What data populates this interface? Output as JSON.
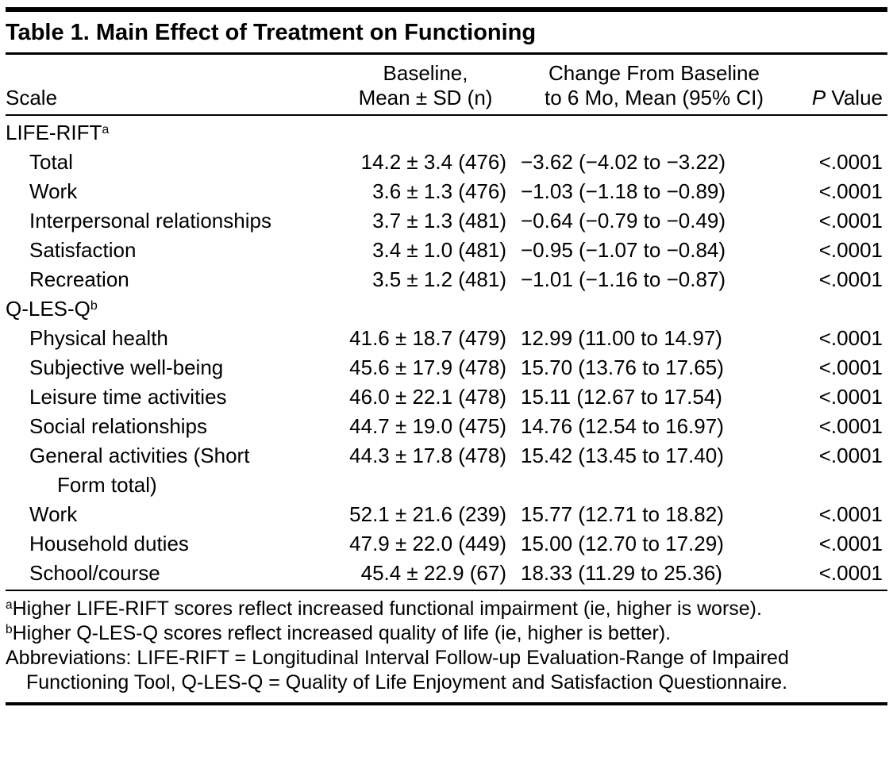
{
  "table": {
    "title": "Table 1. Main Effect of Treatment on Functioning",
    "columns": {
      "scale": "Scale",
      "baseline_line1": "Baseline,",
      "baseline_line2": "Mean ± SD (n)",
      "change_line1": "Change From Baseline",
      "change_line2": "to 6 Mo, Mean (95% CI)",
      "p_italic": "P",
      "p_rest": " Value"
    },
    "rows": [
      {
        "type": "section",
        "label": "LIFE-RIFT",
        "sup": "a"
      },
      {
        "type": "data",
        "label": "Total",
        "baseline": "14.2 ± 3.4 (476)",
        "change": "−3.62 (−4.02 to −3.22)",
        "p": "<.0001"
      },
      {
        "type": "data",
        "label": "Work",
        "baseline": "3.6 ± 1.3 (476)",
        "change": "−1.03 (−1.18 to −0.89)",
        "p": "<.0001"
      },
      {
        "type": "data",
        "label": "Interpersonal relationships",
        "baseline": "3.7 ± 1.3 (481)",
        "change": "−0.64 (−0.79 to −0.49)",
        "p": "<.0001"
      },
      {
        "type": "data",
        "label": "Satisfaction",
        "baseline": "3.4 ± 1.0 (481)",
        "change": "−0.95 (−1.07 to −0.84)",
        "p": "<.0001"
      },
      {
        "type": "data",
        "label": "Recreation",
        "baseline": "3.5 ± 1.2 (481)",
        "change": "−1.01 (−1.16 to −0.87)",
        "p": "<.0001"
      },
      {
        "type": "section",
        "label": "Q-LES-Q",
        "sup": "b"
      },
      {
        "type": "data",
        "label": "Physical health",
        "baseline": "41.6 ± 18.7 (479)",
        "change": "12.99 (11.00 to 14.97)",
        "p": "<.0001"
      },
      {
        "type": "data",
        "label": "Subjective well-being",
        "baseline": "45.6 ± 17.9 (478)",
        "change": "15.70 (13.76 to 17.65)",
        "p": "<.0001"
      },
      {
        "type": "data",
        "label": "Leisure time activities",
        "baseline": "46.0 ± 22.1 (478)",
        "change": "15.11 (12.67 to 17.54)",
        "p": "<.0001"
      },
      {
        "type": "data",
        "label": "Social relationships",
        "baseline": "44.7 ± 19.0 (475)",
        "change": "14.76 (12.54 to 16.97)",
        "p": "<.0001"
      },
      {
        "type": "data",
        "label": "General activities (Short",
        "label2": "Form total)",
        "baseline": "44.3 ± 17.8 (478)",
        "change": "15.42 (13.45 to 17.40)",
        "p": "<.0001"
      },
      {
        "type": "data",
        "label": "Work",
        "baseline": "52.1 ± 21.6 (239)",
        "change": "15.77 (12.71 to 18.82)",
        "p": "<.0001"
      },
      {
        "type": "data",
        "label": "Household duties",
        "baseline": "47.9 ± 22.0 (449)",
        "change": "15.00 (12.70 to 17.29)",
        "p": "<.0001"
      },
      {
        "type": "data",
        "label": "School/course",
        "baseline": "45.4 ± 22.9 (67)",
        "change": "18.33 (11.29 to 25.36)",
        "p": "<.0001"
      }
    ],
    "footnotes": [
      {
        "sup": "a",
        "text": "Higher LIFE-RIFT scores reflect increased functional impairment (ie, higher is worse)."
      },
      {
        "sup": "b",
        "text": "Higher Q-LES-Q scores reflect increased quality of life (ie, higher is better)."
      },
      {
        "sup": "",
        "text": "Abbreviations: LIFE-RIFT = Longitudinal Interval Follow-up Evaluation-Range of Impaired Functioning Tool, Q-LES-Q = Quality of Life Enjoyment and Satisfaction Questionnaire."
      }
    ]
  },
  "colors": {
    "background": "#ffffff",
    "text": "#000000",
    "rule": "#000000"
  }
}
